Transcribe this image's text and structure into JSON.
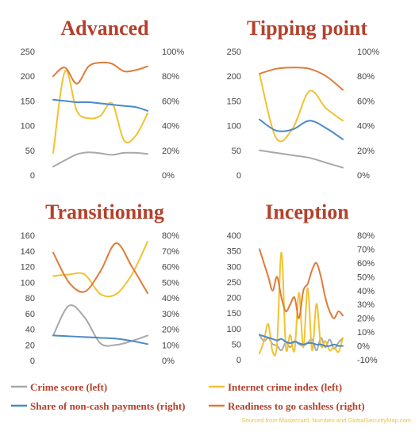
{
  "style": {
    "title_color": "#b5402b",
    "axis_label_color": "#444444",
    "legend_text_color": "#b5402b",
    "source_color": "#e8c24a",
    "series_colors": {
      "crime": "#a8a8a8",
      "internet": "#f1c232",
      "noncash": "#4a89c8",
      "readiness": "#e07b39"
    }
  },
  "legend": [
    {
      "key": "crime",
      "label": "Crime score (left)"
    },
    {
      "key": "internet",
      "label": "Internet crime index (left)"
    },
    {
      "key": "noncash",
      "label": "Share of non-cash payments (right)"
    },
    {
      "key": "readiness",
      "label": "Readiness to go cashless (right)"
    }
  ],
  "source_note": "Sourced from Mastercard, Numbeo and GlobalSecurityMap.com",
  "chart_data": [
    {
      "type": "line",
      "title": "Advanced",
      "ylim_left": [
        0,
        250
      ],
      "yticks_left": [
        "0",
        "50",
        "100",
        "150",
        "200",
        "250"
      ],
      "ylim_right": [
        0,
        100
      ],
      "yticks_right": [
        "0%",
        "20%",
        "40%",
        "60%",
        "80%",
        "100%"
      ],
      "x": [
        1,
        2,
        3,
        4,
        5,
        6,
        7,
        8,
        9
      ],
      "series": [
        {
          "key": "crime",
          "axis": "left",
          "values": [
            17,
            30,
            42,
            46,
            44,
            41,
            45,
            45,
            43
          ]
        },
        {
          "key": "internet",
          "axis": "left",
          "values": [
            45,
            210,
            130,
            115,
            120,
            145,
            70,
            80,
            125
          ]
        },
        {
          "key": "noncash",
          "axis": "right",
          "values": [
            61,
            60,
            59,
            59,
            58,
            57,
            56,
            55,
            52
          ]
        },
        {
          "key": "readiness",
          "axis": "right",
          "values": [
            80,
            87,
            74,
            88,
            91,
            90,
            84,
            85,
            88
          ]
        }
      ]
    },
    {
      "type": "line",
      "title": "Tipping point",
      "ylim_left": [
        0,
        250
      ],
      "yticks_left": [
        "0",
        "50",
        "100",
        "150",
        "200",
        "250"
      ],
      "ylim_right": [
        0,
        100
      ],
      "yticks_right": [
        "0%",
        "20%",
        "40%",
        "60%",
        "80%",
        "100%"
      ],
      "x": [
        1,
        2,
        3,
        4,
        5,
        6
      ],
      "series": [
        {
          "key": "crime",
          "axis": "left",
          "values": [
            50,
            45,
            40,
            35,
            25,
            15
          ]
        },
        {
          "key": "internet",
          "axis": "left",
          "values": [
            205,
            75,
            95,
            170,
            135,
            110
          ]
        },
        {
          "key": "noncash",
          "axis": "right",
          "values": [
            45,
            36,
            37,
            44,
            38,
            29
          ]
        },
        {
          "key": "readiness",
          "axis": "right",
          "values": [
            82,
            86,
            87,
            86,
            80,
            69
          ]
        }
      ]
    },
    {
      "type": "line",
      "title": "Transitioning",
      "ylim_left": [
        0,
        160
      ],
      "yticks_left": [
        "0",
        "20",
        "40",
        "60",
        "80",
        "100",
        "120",
        "140",
        "160"
      ],
      "ylim_right": [
        0,
        80
      ],
      "yticks_right": [
        "0%",
        "10%",
        "20%",
        "30%",
        "40%",
        "50%",
        "60%",
        "70%",
        "80%"
      ],
      "x": [
        1,
        2,
        3,
        4,
        5,
        6,
        7
      ],
      "series": [
        {
          "key": "crime",
          "axis": "left",
          "values": [
            32,
            70,
            55,
            22,
            20,
            25,
            32
          ]
        },
        {
          "key": "internet",
          "axis": "left",
          "values": [
            108,
            110,
            110,
            85,
            85,
            110,
            152
          ]
        },
        {
          "key": "noncash",
          "axis": "right",
          "values": [
            16,
            15.5,
            15,
            14.5,
            14,
            12.5,
            10.5
          ]
        },
        {
          "key": "readiness",
          "axis": "right",
          "values": [
            69,
            50,
            44,
            57,
            75,
            60,
            43
          ]
        }
      ]
    },
    {
      "type": "line",
      "title": "Inception",
      "ylim_left": [
        0,
        400
      ],
      "yticks_left": [
        "0",
        "50",
        "100",
        "150",
        "200",
        "250",
        "300",
        "350",
        "400"
      ],
      "ylim_right": [
        -10,
        80
      ],
      "yticks_right": [
        "-10%",
        "0%",
        "10%",
        "20%",
        "30%",
        "40%",
        "50%",
        "60%",
        "70%",
        "80%"
      ],
      "x": [
        1,
        2,
        3,
        4,
        5,
        6,
        7,
        8,
        9,
        10,
        11,
        12,
        13,
        14,
        15,
        16,
        17,
        18,
        19,
        20
      ],
      "series": [
        {
          "key": "crime",
          "axis": "left",
          "values": [
            80,
            60,
            70,
            50,
            45,
            30,
            55,
            40,
            60,
            50,
            45,
            55,
            65,
            30,
            70,
            40,
            65,
            35,
            55,
            70
          ]
        },
        {
          "key": "internet",
          "axis": "left",
          "values": [
            20,
            60,
            115,
            25,
            50,
            345,
            40,
            80,
            30,
            215,
            40,
            230,
            30,
            180,
            45,
            60,
            30,
            40,
            25,
            70
          ]
        },
        {
          "key": "noncash",
          "axis": "right",
          "values": [
            8,
            7,
            6,
            5,
            4,
            5,
            3,
            2,
            3,
            2,
            1,
            2,
            2,
            1,
            1,
            0,
            0,
            1,
            0,
            0
          ]
        },
        {
          "key": "readiness",
          "axis": "right",
          "values": [
            70,
            60,
            50,
            40,
            50,
            35,
            25,
            30,
            35,
            20,
            40,
            45,
            55,
            60,
            50,
            35,
            25,
            20,
            25,
            22
          ]
        }
      ]
    }
  ]
}
